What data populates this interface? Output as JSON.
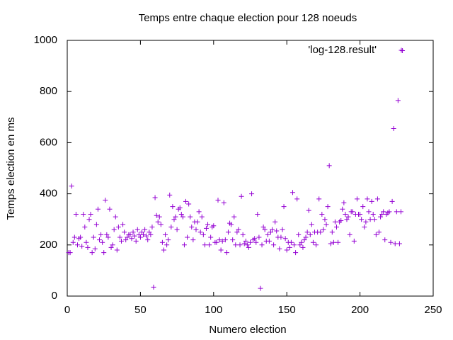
{
  "chart_data": {
    "type": "scatter",
    "title": "Temps entre chaque election pour 128 noeuds",
    "xlabel": "Numero election",
    "ylabel": "Temps election en ms",
    "xlim": [
      0,
      250
    ],
    "xticks": [
      0,
      50,
      100,
      150,
      200,
      250
    ],
    "ylim": [
      0,
      1000
    ],
    "yticks": [
      0,
      200,
      400,
      600,
      800,
      1000
    ],
    "legend": "top-right",
    "series": [
      {
        "name": "'log-128.result'",
        "color": "#9400d3",
        "x": [
          1,
          2,
          3,
          4,
          5,
          6,
          7,
          8,
          9,
          10,
          11,
          12,
          13,
          14,
          15,
          16,
          17,
          18,
          19,
          20,
          21,
          22,
          23,
          24,
          25,
          26,
          27,
          28,
          29,
          30,
          31,
          32,
          33,
          34,
          35,
          36,
          37,
          38,
          39,
          40,
          41,
          42,
          43,
          44,
          45,
          46,
          47,
          48,
          49,
          50,
          51,
          52,
          53,
          54,
          55,
          56,
          57,
          58,
          59,
          60,
          61,
          62,
          63,
          64,
          65,
          66,
          67,
          68,
          69,
          70,
          71,
          72,
          73,
          74,
          75,
          76,
          77,
          78,
          79,
          80,
          81,
          82,
          83,
          84,
          85,
          86,
          87,
          88,
          89,
          90,
          91,
          92,
          93,
          94,
          95,
          96,
          97,
          98,
          99,
          100,
          101,
          102,
          103,
          104,
          105,
          106,
          107,
          108,
          109,
          110,
          111,
          112,
          113,
          114,
          115,
          116,
          117,
          118,
          119,
          120,
          121,
          122,
          123,
          124,
          125,
          126,
          127,
          128,
          129,
          130,
          131,
          132,
          133,
          134,
          135,
          136,
          137,
          138,
          139,
          140,
          141,
          142,
          143,
          144,
          145,
          146,
          147,
          148,
          149,
          150,
          151,
          152,
          153,
          154,
          155,
          156,
          157,
          158,
          159,
          160,
          161,
          162,
          163,
          164,
          165,
          166,
          167,
          168,
          169,
          170,
          171,
          172,
          173,
          174,
          175,
          176,
          177,
          178,
          179,
          180,
          181,
          182,
          183,
          184,
          185,
          186,
          187,
          188,
          189,
          190,
          191,
          192,
          193,
          194,
          195,
          196,
          197,
          198,
          199,
          200,
          201,
          202,
          203,
          204,
          205,
          206,
          207,
          208,
          209,
          210,
          211,
          212,
          213,
          214,
          215,
          216,
          217,
          218,
          219,
          220,
          221,
          222,
          223,
          224,
          225,
          226,
          227,
          228,
          229
        ],
        "values": [
          170,
          170,
          430,
          210,
          230,
          320,
          200,
          225,
          230,
          195,
          320,
          270,
          210,
          190,
          300,
          320,
          170,
          230,
          185,
          280,
          340,
          220,
          240,
          210,
          170,
          375,
          240,
          230,
          340,
          190,
          200,
          260,
          310,
          180,
          270,
          230,
          215,
          280,
          250,
          220,
          230,
          240,
          240,
          225,
          250,
          235,
          215,
          260,
          240,
          230,
          250,
          240,
          260,
          235,
          220,
          250,
          240,
          270,
          35,
          385,
          315,
          290,
          310,
          280,
          210,
          180,
          240,
          200,
          220,
          395,
          270,
          350,
          300,
          310,
          260,
          340,
          345,
          320,
          310,
          200,
          370,
          230,
          360,
          310,
          270,
          220,
          290,
          260,
          290,
          330,
          250,
          310,
          240,
          200,
          265,
          280,
          200,
          230,
          270,
          275,
          210,
          210,
          375,
          220,
          180,
          215,
          365,
          220,
          170,
          250,
          285,
          280,
          220,
          310,
          200,
          250,
          260,
          200,
          390,
          240,
          205,
          215,
          200,
          190,
          210,
          400,
          220,
          225,
          210,
          320,
          230,
          30,
          200,
          270,
          260,
          215,
          240,
          215,
          250,
          260,
          200,
          290,
          255,
          230,
          185,
          230,
          260,
          350,
          225,
          180,
          210,
          190,
          210,
          405,
          200,
          170,
          380,
          240,
          200,
          210,
          190,
          220,
          230,
          250,
          335,
          240,
          280,
          210,
          250,
          200,
          250,
          380,
          250,
          320,
          260,
          300,
          280,
          350,
          510,
          205,
          250,
          210,
          290,
          270,
          210,
          290,
          295,
          340,
          365,
          320,
          300,
          310,
          240,
          330,
          330,
          215,
          320,
          380,
          320,
          320,
          300,
          350,
          270,
          290,
          380,
          330,
          300,
          370,
          320,
          300,
          240,
          380,
          250,
          310,
          320,
          330,
          220,
          320,
          325,
          330,
          210,
          370,
          655,
          205,
          330,
          765,
          205,
          330,
          960
        ]
      }
    ]
  }
}
